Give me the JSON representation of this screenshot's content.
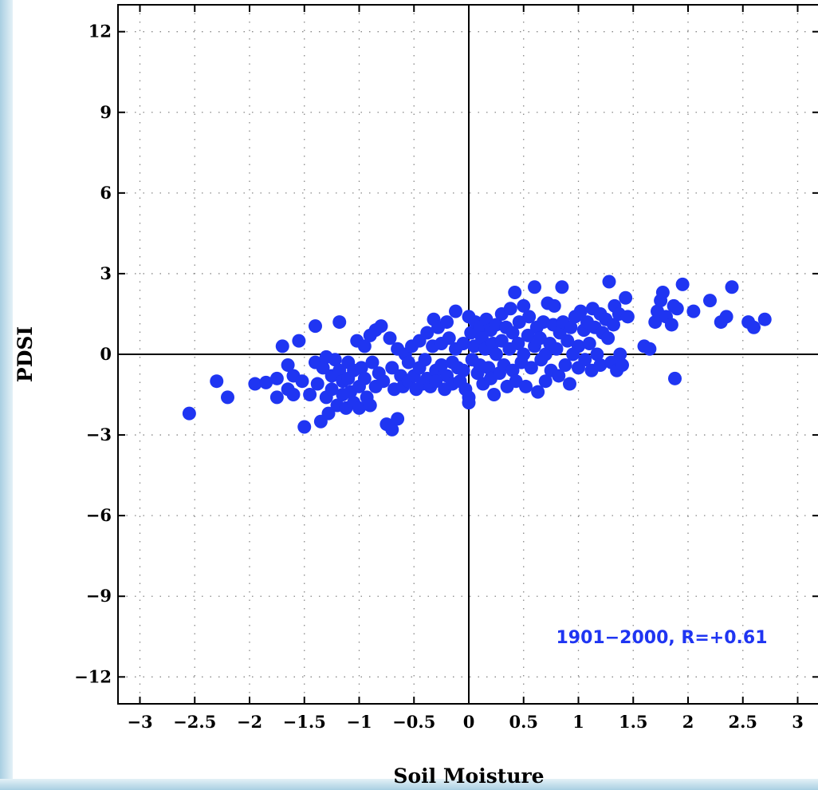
{
  "chart_data": {
    "type": "scatter",
    "title": "",
    "xlabel": "Soil Moisture",
    "ylabel": "PDSI",
    "xlim": [
      -3.2,
      3.2
    ],
    "ylim": [
      -13,
      13
    ],
    "x_ticks": [
      -3,
      -2.5,
      -2,
      -1.5,
      -1,
      -0.5,
      0,
      0.5,
      1,
      1.5,
      2,
      2.5,
      3
    ],
    "x_tick_labels": [
      "−3",
      "−2.5",
      "−2",
      "−1.5",
      "−1",
      "−0.5",
      "0",
      "0.5",
      "1",
      "1.5",
      "2",
      "2.5",
      "3"
    ],
    "y_ticks": [
      12,
      9,
      6,
      3,
      0,
      -3,
      -6,
      -9,
      -12
    ],
    "y_tick_labels": [
      "12",
      "9",
      "6",
      "3",
      "0",
      "−3",
      "−6",
      "−9",
      "−12"
    ],
    "grid": true,
    "grid_style": "dotted",
    "zero_lines": true,
    "point_color": "#1f35f2",
    "annotation": "1901−2000, R=+0.61",
    "series": [
      {
        "points": [
          [
            -2.55,
            -2.2
          ],
          [
            -2.3,
            -1.0
          ],
          [
            -2.2,
            -1.6
          ],
          [
            -1.95,
            -1.1
          ],
          [
            -1.85,
            -1.05
          ],
          [
            -1.75,
            -0.9
          ],
          [
            -1.75,
            -1.6
          ],
          [
            -1.7,
            0.3
          ],
          [
            -1.65,
            -0.4
          ],
          [
            -1.65,
            -1.3
          ],
          [
            -1.6,
            -0.8
          ],
          [
            -1.6,
            -1.5
          ],
          [
            -1.55,
            0.5
          ],
          [
            -1.52,
            -1.0
          ],
          [
            -1.5,
            -2.7
          ],
          [
            -1.45,
            -1.5
          ],
          [
            -1.4,
            1.05
          ],
          [
            -1.4,
            -0.3
          ],
          [
            -1.38,
            -1.1
          ],
          [
            -1.35,
            -2.5
          ],
          [
            -1.33,
            -0.5
          ],
          [
            -1.3,
            -1.6
          ],
          [
            -1.3,
            -0.1
          ],
          [
            -1.28,
            -2.2
          ],
          [
            -1.25,
            -0.8
          ],
          [
            -1.25,
            -1.3
          ],
          [
            -1.22,
            -0.2
          ],
          [
            -1.2,
            -1.9
          ],
          [
            -1.18,
            1.2
          ],
          [
            -1.18,
            -0.6
          ],
          [
            -1.15,
            -1.0
          ],
          [
            -1.15,
            -1.5
          ],
          [
            -1.12,
            -2.0
          ],
          [
            -1.1,
            -0.3
          ],
          [
            -1.1,
            -0.9
          ],
          [
            -1.08,
            -1.4
          ],
          [
            -1.05,
            -1.8
          ],
          [
            -1.05,
            -0.6
          ],
          [
            -1.02,
            0.5
          ],
          [
            -1.0,
            -1.2
          ],
          [
            -1.0,
            -2.0
          ],
          [
            -0.98,
            -0.5
          ],
          [
            -0.95,
            0.3
          ],
          [
            -0.95,
            -0.9
          ],
          [
            -0.93,
            -1.6
          ],
          [
            -0.9,
            0.7
          ],
          [
            -0.9,
            -1.9
          ],
          [
            -0.88,
            -0.3
          ],
          [
            -0.85,
            0.9
          ],
          [
            -0.85,
            -1.2
          ],
          [
            -0.82,
            -0.7
          ],
          [
            -0.8,
            1.05
          ],
          [
            -0.78,
            -1.0
          ],
          [
            -0.75,
            -2.6
          ],
          [
            -0.72,
            0.6
          ],
          [
            -0.7,
            -0.5
          ],
          [
            -0.7,
            -2.8
          ],
          [
            -0.68,
            -1.3
          ],
          [
            -0.65,
            0.2
          ],
          [
            -0.65,
            -2.4
          ],
          [
            -0.62,
            -0.8
          ],
          [
            -0.6,
            -1.2
          ],
          [
            -0.58,
            0.0
          ],
          [
            -0.55,
            -0.3
          ],
          [
            -0.55,
            -1.0
          ],
          [
            -0.52,
            0.3
          ],
          [
            -0.5,
            -0.8
          ],
          [
            -0.48,
            -1.3
          ],
          [
            -0.45,
            -0.5
          ],
          [
            -0.45,
            0.5
          ],
          [
            -0.42,
            -1.1
          ],
          [
            -0.4,
            -0.2
          ],
          [
            -0.38,
            0.8
          ],
          [
            -0.38,
            -0.9
          ],
          [
            -0.35,
            -1.2
          ],
          [
            -0.33,
            0.3
          ],
          [
            -0.32,
            1.3
          ],
          [
            -0.3,
            -0.6
          ],
          [
            -0.3,
            -1.0
          ],
          [
            -0.28,
            1.0
          ],
          [
            -0.25,
            0.4
          ],
          [
            -0.25,
            -0.4
          ],
          [
            -0.22,
            -1.3
          ],
          [
            -0.2,
            1.2
          ],
          [
            -0.2,
            -0.8
          ],
          [
            -0.18,
            0.6
          ],
          [
            -0.15,
            -0.3
          ],
          [
            -0.15,
            -1.1
          ],
          [
            -0.12,
            1.6
          ],
          [
            -0.12,
            0.2
          ],
          [
            -0.1,
            -0.5
          ],
          [
            -0.08,
            -1.0
          ],
          [
            -0.05,
            0.4
          ],
          [
            -0.05,
            -0.6
          ],
          [
            -0.03,
            -1.3
          ],
          [
            0.0,
            1.4
          ],
          [
            0.0,
            -1.6
          ],
          [
            0.0,
            -1.8
          ],
          [
            0.02,
            0.8
          ],
          [
            0.03,
            -0.2
          ],
          [
            0.05,
            0.3
          ],
          [
            0.06,
            1.2
          ],
          [
            0.08,
            -0.7
          ],
          [
            0.1,
            1.0
          ],
          [
            0.1,
            -0.4
          ],
          [
            0.12,
            0.6
          ],
          [
            0.13,
            -1.1
          ],
          [
            0.15,
            0.2
          ],
          [
            0.16,
            1.3
          ],
          [
            0.18,
            -0.5
          ],
          [
            0.2,
            0.9
          ],
          [
            0.2,
            -0.9
          ],
          [
            0.22,
            0.4
          ],
          [
            0.23,
            -1.5
          ],
          [
            0.25,
            1.1
          ],
          [
            0.25,
            0.0
          ],
          [
            0.28,
            -0.7
          ],
          [
            0.3,
            1.5
          ],
          [
            0.3,
            0.5
          ],
          [
            0.32,
            -0.4
          ],
          [
            0.34,
            1.0
          ],
          [
            0.35,
            -1.2
          ],
          [
            0.37,
            0.2
          ],
          [
            0.38,
            1.7
          ],
          [
            0.4,
            -0.6
          ],
          [
            0.4,
            0.8
          ],
          [
            0.42,
            2.3
          ],
          [
            0.43,
            -1.0
          ],
          [
            0.45,
            0.4
          ],
          [
            0.46,
            1.2
          ],
          [
            0.48,
            -0.3
          ],
          [
            0.5,
            1.8
          ],
          [
            0.5,
            0.0
          ],
          [
            0.52,
            -1.2
          ],
          [
            0.54,
            0.7
          ],
          [
            0.55,
            1.4
          ],
          [
            0.57,
            -0.5
          ],
          [
            0.6,
            2.5
          ],
          [
            0.6,
            0.3
          ],
          [
            0.62,
            1.0
          ],
          [
            0.63,
            -1.4
          ],
          [
            0.65,
            0.6
          ],
          [
            0.66,
            -0.2
          ],
          [
            0.68,
            1.2
          ],
          [
            0.7,
            0.0
          ],
          [
            0.7,
            -1.0
          ],
          [
            0.72,
            1.9
          ],
          [
            0.74,
            0.4
          ],
          [
            0.75,
            -0.6
          ],
          [
            0.77,
            1.1
          ],
          [
            0.78,
            1.8
          ],
          [
            0.8,
            0.2
          ],
          [
            0.82,
            -0.8
          ],
          [
            0.83,
            0.8
          ],
          [
            0.85,
            2.5
          ],
          [
            0.86,
            1.2
          ],
          [
            0.88,
            -0.4
          ],
          [
            0.9,
            0.5
          ],
          [
            0.92,
            -1.1
          ],
          [
            0.93,
            1.0
          ],
          [
            0.95,
            0.0
          ],
          [
            0.97,
            1.4
          ],
          [
            1.0,
            0.3
          ],
          [
            1.0,
            -0.5
          ],
          [
            1.02,
            1.6
          ],
          [
            1.05,
            0.9
          ],
          [
            1.06,
            -0.2
          ],
          [
            1.08,
            1.2
          ],
          [
            1.1,
            0.4
          ],
          [
            1.12,
            -0.6
          ],
          [
            1.13,
            1.7
          ],
          [
            1.15,
            1.0
          ],
          [
            1.17,
            0.0
          ],
          [
            1.2,
            1.5
          ],
          [
            1.2,
            -0.4
          ],
          [
            1.22,
            0.8
          ],
          [
            1.25,
            1.3
          ],
          [
            1.27,
            0.6
          ],
          [
            1.28,
            2.7
          ],
          [
            1.3,
            -0.3
          ],
          [
            1.32,
            1.1
          ],
          [
            1.33,
            1.8
          ],
          [
            1.35,
            -0.6
          ],
          [
            1.37,
            1.5
          ],
          [
            1.38,
            0.0
          ],
          [
            1.4,
            -0.4
          ],
          [
            1.43,
            2.1
          ],
          [
            1.45,
            1.4
          ],
          [
            1.6,
            0.3
          ],
          [
            1.65,
            0.2
          ],
          [
            1.7,
            1.2
          ],
          [
            1.72,
            1.6
          ],
          [
            1.75,
            2.0
          ],
          [
            1.77,
            2.3
          ],
          [
            1.8,
            1.4
          ],
          [
            1.85,
            1.1
          ],
          [
            1.87,
            1.8
          ],
          [
            1.88,
            -0.9
          ],
          [
            1.9,
            1.7
          ],
          [
            1.95,
            2.6
          ],
          [
            2.05,
            1.6
          ],
          [
            2.2,
            2.0
          ],
          [
            2.3,
            1.2
          ],
          [
            2.35,
            1.4
          ],
          [
            2.4,
            2.5
          ],
          [
            2.55,
            1.2
          ],
          [
            2.6,
            1.0
          ],
          [
            2.7,
            1.3
          ]
        ]
      }
    ]
  }
}
